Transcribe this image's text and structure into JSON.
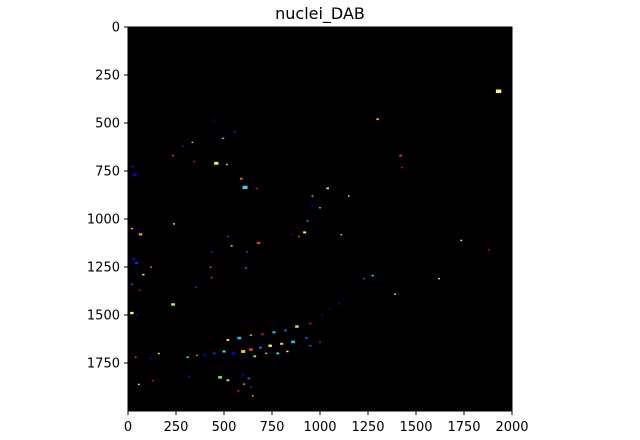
{
  "chart_data": {
    "type": "image",
    "title": "nuclei_DAB",
    "background_color": "#000000",
    "xlim": [
      0,
      2000
    ],
    "ylim": [
      2000,
      0
    ],
    "y_inverted": true,
    "xticks": [
      0,
      250,
      500,
      750,
      1000,
      1250,
      1500,
      1750,
      2000
    ],
    "yticks": [
      0,
      250,
      500,
      750,
      1000,
      1250,
      1500,
      1750
    ],
    "xtick_labels": [
      "0",
      "250",
      "500",
      "750",
      "1000",
      "1250",
      "1500",
      "1750",
      "2000"
    ],
    "ytick_labels": [
      "0",
      "250",
      "500",
      "750",
      "1000",
      "1250",
      "1500",
      "1750"
    ],
    "colormap": "jet",
    "blobs": [
      {
        "x": 1930,
        "y": 335,
        "size": 28,
        "color": "#ffff33"
      },
      {
        "x": 1300,
        "y": 480,
        "size": 14,
        "color": "#ff9933"
      },
      {
        "x": 450,
        "y": 485,
        "size": 10,
        "color": "#0000aa"
      },
      {
        "x": 555,
        "y": 545,
        "size": 10,
        "color": "#0033ff"
      },
      {
        "x": 495,
        "y": 580,
        "size": 12,
        "color": "#33ccff"
      },
      {
        "x": 335,
        "y": 600,
        "size": 8,
        "color": "#66ffcc"
      },
      {
        "x": 285,
        "y": 620,
        "size": 8,
        "color": "#0033cc"
      },
      {
        "x": 235,
        "y": 670,
        "size": 10,
        "color": "#ff3300"
      },
      {
        "x": 345,
        "y": 700,
        "size": 8,
        "color": "#ff0000"
      },
      {
        "x": 460,
        "y": 710,
        "size": 22,
        "color": "#ffff33"
      },
      {
        "x": 515,
        "y": 715,
        "size": 8,
        "color": "#ffff66"
      },
      {
        "x": 25,
        "y": 725,
        "size": 8,
        "color": "#0033ff"
      },
      {
        "x": 35,
        "y": 770,
        "size": 20,
        "color": "#0000ff"
      },
      {
        "x": 1420,
        "y": 670,
        "size": 14,
        "color": "#ff3300"
      },
      {
        "x": 1425,
        "y": 730,
        "size": 6,
        "color": "#ff0000"
      },
      {
        "x": 590,
        "y": 790,
        "size": 14,
        "color": "#ff6600"
      },
      {
        "x": 610,
        "y": 835,
        "size": 26,
        "color": "#33ccff"
      },
      {
        "x": 670,
        "y": 840,
        "size": 10,
        "color": "#ff0000"
      },
      {
        "x": 1040,
        "y": 840,
        "size": 14,
        "color": "#99ff66"
      },
      {
        "x": 960,
        "y": 880,
        "size": 8,
        "color": "#00ffff"
      },
      {
        "x": 1150,
        "y": 880,
        "size": 8,
        "color": "#ccff33"
      },
      {
        "x": 960,
        "y": 930,
        "size": 10,
        "color": "#0000ff"
      },
      {
        "x": 1000,
        "y": 940,
        "size": 8,
        "color": "#66ff99"
      },
      {
        "x": 935,
        "y": 1010,
        "size": 10,
        "color": "#00aaff"
      },
      {
        "x": 240,
        "y": 1025,
        "size": 10,
        "color": "#ffff00"
      },
      {
        "x": 20,
        "y": 1050,
        "size": 12,
        "color": "#ffaa00"
      },
      {
        "x": 55,
        "y": 1060,
        "size": 10,
        "color": "#0000cc"
      },
      {
        "x": 65,
        "y": 1080,
        "size": 18,
        "color": "#ff9900"
      },
      {
        "x": 920,
        "y": 1070,
        "size": 16,
        "color": "#ccff66"
      },
      {
        "x": 855,
        "y": 1080,
        "size": 12,
        "color": "#0000aa"
      },
      {
        "x": 890,
        "y": 1090,
        "size": 10,
        "color": "#ff3300"
      },
      {
        "x": 520,
        "y": 1090,
        "size": 8,
        "color": "#0066ff"
      },
      {
        "x": 1110,
        "y": 1080,
        "size": 6,
        "color": "#66ffcc"
      },
      {
        "x": 680,
        "y": 1125,
        "size": 18,
        "color": "#ff3300"
      },
      {
        "x": 540,
        "y": 1140,
        "size": 10,
        "color": "#ccff00"
      },
      {
        "x": 1735,
        "y": 1110,
        "size": 6,
        "color": "#ffff66"
      },
      {
        "x": 1880,
        "y": 1160,
        "size": 8,
        "color": "#ff0000"
      },
      {
        "x": 435,
        "y": 1170,
        "size": 8,
        "color": "#0033ff"
      },
      {
        "x": 620,
        "y": 1170,
        "size": 8,
        "color": "#0066ff"
      },
      {
        "x": 30,
        "y": 1210,
        "size": 16,
        "color": "#0000ff"
      },
      {
        "x": 45,
        "y": 1230,
        "size": 16,
        "color": "#0033ff"
      },
      {
        "x": 120,
        "y": 1250,
        "size": 10,
        "color": "#ff6600"
      },
      {
        "x": 430,
        "y": 1250,
        "size": 8,
        "color": "#ff6600"
      },
      {
        "x": 615,
        "y": 1255,
        "size": 12,
        "color": "#0066ff"
      },
      {
        "x": 80,
        "y": 1290,
        "size": 12,
        "color": "#ffff00"
      },
      {
        "x": 1275,
        "y": 1295,
        "size": 12,
        "color": "#00ccff"
      },
      {
        "x": 1230,
        "y": 1310,
        "size": 10,
        "color": "#0066ff"
      },
      {
        "x": 1620,
        "y": 1310,
        "size": 10,
        "color": "#ccff33"
      },
      {
        "x": 435,
        "y": 1305,
        "size": 8,
        "color": "#ff3300"
      },
      {
        "x": 355,
        "y": 1355,
        "size": 8,
        "color": "#0033ff"
      },
      {
        "x": 20,
        "y": 1340,
        "size": 10,
        "color": "#0066ff"
      },
      {
        "x": 60,
        "y": 1370,
        "size": 8,
        "color": "#ff0000"
      },
      {
        "x": 1390,
        "y": 1390,
        "size": 6,
        "color": "#ffff66"
      },
      {
        "x": 235,
        "y": 1445,
        "size": 20,
        "color": "#99ff33"
      },
      {
        "x": 1100,
        "y": 1440,
        "size": 8,
        "color": "#0000ff"
      },
      {
        "x": 1050,
        "y": 1470,
        "size": 8,
        "color": "#0000cc"
      },
      {
        "x": 20,
        "y": 1490,
        "size": 18,
        "color": "#ffff00"
      },
      {
        "x": 45,
        "y": 1500,
        "size": 10,
        "color": "#0000ff"
      },
      {
        "x": 1010,
        "y": 1500,
        "size": 8,
        "color": "#0000ff"
      },
      {
        "x": 950,
        "y": 1545,
        "size": 12,
        "color": "#ff0000"
      },
      {
        "x": 880,
        "y": 1560,
        "size": 18,
        "color": "#ccff33"
      },
      {
        "x": 820,
        "y": 1580,
        "size": 14,
        "color": "#0066ff"
      },
      {
        "x": 760,
        "y": 1590,
        "size": 16,
        "color": "#00ccff"
      },
      {
        "x": 700,
        "y": 1600,
        "size": 14,
        "color": "#ff0000"
      },
      {
        "x": 640,
        "y": 1605,
        "size": 12,
        "color": "#ff9933"
      },
      {
        "x": 580,
        "y": 1620,
        "size": 20,
        "color": "#00ccff"
      },
      {
        "x": 520,
        "y": 1630,
        "size": 14,
        "color": "#ffff00"
      },
      {
        "x": 930,
        "y": 1620,
        "size": 16,
        "color": "#0033ff"
      },
      {
        "x": 860,
        "y": 1640,
        "size": 20,
        "color": "#00ccff"
      },
      {
        "x": 800,
        "y": 1650,
        "size": 16,
        "color": "#ffcc33"
      },
      {
        "x": 740,
        "y": 1660,
        "size": 18,
        "color": "#ffff00"
      },
      {
        "x": 690,
        "y": 1670,
        "size": 16,
        "color": "#0066ff"
      },
      {
        "x": 640,
        "y": 1680,
        "size": 20,
        "color": "#ff3300"
      },
      {
        "x": 600,
        "y": 1690,
        "size": 22,
        "color": "#ffcc00"
      },
      {
        "x": 550,
        "y": 1700,
        "size": 18,
        "color": "#0000ff"
      },
      {
        "x": 500,
        "y": 1690,
        "size": 16,
        "color": "#00ffcc"
      },
      {
        "x": 450,
        "y": 1700,
        "size": 14,
        "color": "#0033ff"
      },
      {
        "x": 400,
        "y": 1710,
        "size": 16,
        "color": "#0000cc"
      },
      {
        "x": 360,
        "y": 1710,
        "size": 10,
        "color": "#ff6600"
      },
      {
        "x": 310,
        "y": 1720,
        "size": 12,
        "color": "#00ffcc"
      },
      {
        "x": 660,
        "y": 1715,
        "size": 14,
        "color": "#99ff33"
      },
      {
        "x": 720,
        "y": 1700,
        "size": 12,
        "color": "#ff9900"
      },
      {
        "x": 780,
        "y": 1700,
        "size": 14,
        "color": "#00ffff"
      },
      {
        "x": 830,
        "y": 1690,
        "size": 12,
        "color": "#ffff33"
      },
      {
        "x": 950,
        "y": 1660,
        "size": 12,
        "color": "#0066ff"
      },
      {
        "x": 1000,
        "y": 1640,
        "size": 8,
        "color": "#ff0000"
      },
      {
        "x": 160,
        "y": 1700,
        "size": 10,
        "color": "#ffff33"
      },
      {
        "x": 120,
        "y": 1725,
        "size": 10,
        "color": "#0000ff"
      },
      {
        "x": 40,
        "y": 1720,
        "size": 10,
        "color": "#ff3300"
      },
      {
        "x": 320,
        "y": 1820,
        "size": 12,
        "color": "#0000ff"
      },
      {
        "x": 480,
        "y": 1825,
        "size": 20,
        "color": "#66ff33"
      },
      {
        "x": 520,
        "y": 1840,
        "size": 14,
        "color": "#ccff33"
      },
      {
        "x": 600,
        "y": 1810,
        "size": 10,
        "color": "#0000ff"
      },
      {
        "x": 630,
        "y": 1830,
        "size": 14,
        "color": "#0066ff"
      },
      {
        "x": 605,
        "y": 1860,
        "size": 12,
        "color": "#ff6600"
      },
      {
        "x": 640,
        "y": 1875,
        "size": 10,
        "color": "#0033ff"
      },
      {
        "x": 575,
        "y": 1895,
        "size": 10,
        "color": "#ff3300"
      },
      {
        "x": 650,
        "y": 1920,
        "size": 8,
        "color": "#ffcc00"
      },
      {
        "x": 130,
        "y": 1840,
        "size": 8,
        "color": "#ff0000"
      },
      {
        "x": 55,
        "y": 1860,
        "size": 6,
        "color": "#ffff66"
      }
    ]
  }
}
